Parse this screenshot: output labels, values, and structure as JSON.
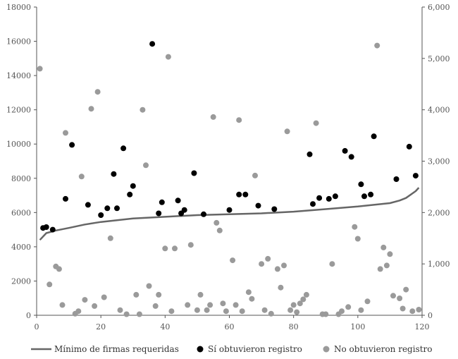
{
  "chart_data": {
    "type": "scatter",
    "x_axis": {
      "range": [
        0,
        120
      ],
      "ticks": [
        "0",
        "20",
        "40",
        "60",
        "80",
        "100",
        "120"
      ]
    },
    "y_left": {
      "range": [
        0,
        18000
      ],
      "ticks": [
        "0",
        "2000",
        "4000",
        "6000",
        "8000",
        "10000",
        "12000",
        "14000",
        "16000",
        "18000"
      ]
    },
    "y_right": {
      "range": [
        0,
        6000
      ],
      "ticks": [
        "0",
        "1,000",
        "2,000",
        "3,000",
        "4,000",
        "5,000",
        "6,000"
      ]
    },
    "grid": false,
    "legend_position": "bottom",
    "series": [
      {
        "name": "Mínimo de firmas requeridas",
        "kind": "line",
        "axis": "left",
        "color": "#666666",
        "x": [
          1,
          3,
          6,
          10,
          15,
          20,
          30,
          40,
          50,
          60,
          70,
          80,
          90,
          100,
          105,
          110,
          113,
          115,
          118,
          119
        ],
        "y": [
          4400,
          4800,
          4950,
          5100,
          5300,
          5450,
          5650,
          5750,
          5850,
          5900,
          5950,
          6050,
          6200,
          6350,
          6450,
          6550,
          6700,
          6850,
          7250,
          7450
        ]
      },
      {
        "name": "Sí obtuvieron registro",
        "kind": "points",
        "axis": "left",
        "color": "#000000",
        "x": [
          2,
          3,
          5,
          9,
          11,
          16,
          20,
          22,
          24,
          25,
          27,
          29,
          30,
          36,
          38,
          39,
          44,
          45,
          46,
          49,
          52,
          60,
          63,
          65,
          69,
          74,
          85,
          86,
          88,
          91,
          93,
          96,
          98,
          101,
          102,
          104,
          105,
          112,
          116,
          118
        ],
        "y": [
          5100,
          5150,
          5000,
          6800,
          9950,
          6450,
          5850,
          6250,
          8250,
          6250,
          9750,
          7050,
          7550,
          15850,
          5950,
          6600,
          6700,
          5950,
          6150,
          8300,
          5900,
          6150,
          7050,
          7050,
          6400,
          6200,
          9400,
          6500,
          6850,
          6800,
          6950,
          9600,
          9250,
          7650,
          6950,
          7050,
          10450,
          7950,
          9850,
          8150
        ]
      },
      {
        "name": "No obtuvieron registro",
        "kind": "points",
        "axis": "right",
        "color": "#9a9a9a",
        "x": [
          1,
          4,
          6,
          7,
          8,
          9,
          12,
          13,
          14,
          15,
          17,
          18,
          19,
          21,
          23,
          26,
          28,
          31,
          32,
          33,
          34,
          35,
          37,
          38,
          40,
          41,
          42,
          43,
          47,
          48,
          50,
          51,
          53,
          54,
          55,
          56,
          57,
          58,
          59,
          61,
          62,
          63,
          64,
          66,
          67,
          68,
          70,
          71,
          72,
          73,
          75,
          76,
          77,
          78,
          79,
          80,
          81,
          82,
          83,
          84,
          87,
          89,
          90,
          92,
          94,
          95,
          97,
          99,
          100,
          101,
          103,
          106,
          107,
          108,
          109,
          110,
          111,
          113,
          114,
          115,
          117,
          119
        ],
        "y": [
          4800,
          600,
          950,
          900,
          200,
          3550,
          30,
          80,
          2700,
          300,
          4020,
          180,
          4350,
          350,
          1500,
          100,
          20,
          400,
          20,
          4000,
          2920,
          570,
          180,
          400,
          1300,
          5030,
          80,
          1300,
          200,
          1370,
          100,
          400,
          100,
          200,
          3860,
          1800,
          1650,
          230,
          80,
          1070,
          200,
          3800,
          80,
          450,
          320,
          2720,
          1000,
          100,
          1100,
          30,
          900,
          540,
          970,
          3580,
          100,
          200,
          60,
          230,
          310,
          400,
          3740,
          20,
          20,
          1000,
          20,
          80,
          160,
          1720,
          1490,
          100,
          270,
          5250,
          900,
          1320,
          970,
          1190,
          380,
          330,
          130,
          500,
          80,
          110
        ]
      }
    ]
  }
}
